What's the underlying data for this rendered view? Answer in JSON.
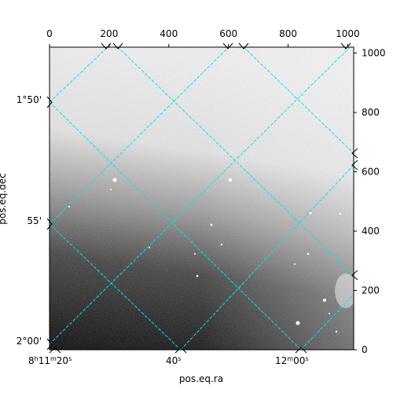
{
  "axes": {
    "xlabel": "pos.eq.ra",
    "ylabel": "pos.eq.dec",
    "top_ticks": [
      "0",
      "200",
      "400",
      "600",
      "800",
      "1000"
    ],
    "right_ticks": [
      "0",
      "200",
      "400",
      "600",
      "800",
      "1000"
    ],
    "ra_ticks": [
      {
        "h": "8",
        "hu": "h",
        "m": "11",
        "mu": "m",
        "s": "20",
        "su": "s"
      },
      {
        "h": "",
        "hu": "",
        "m": "",
        "mu": "",
        "s": "40",
        "su": "s"
      },
      {
        "h": "",
        "hu": "",
        "m": "12",
        "mu": "m",
        "s": "00",
        "su": "s"
      }
    ],
    "dec_ticks": [
      "1°50'",
      "55'",
      "2°00'"
    ]
  },
  "colors": {
    "grid": "#00e5ee",
    "frame": "#000000"
  }
}
